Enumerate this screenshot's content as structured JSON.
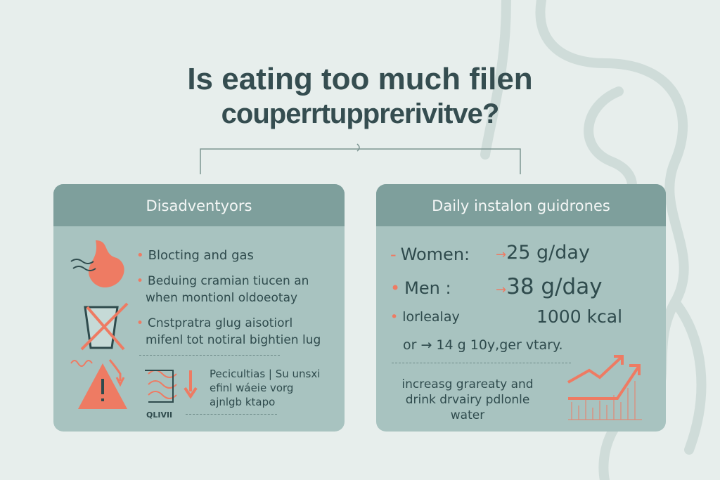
{
  "title": {
    "line1": "Is eating too much filen",
    "line2": "couperrtupprerivitve?"
  },
  "left_card": {
    "header": "Disadventyors",
    "items": [
      "Blocting and gas",
      "Beduing cramian tiucen an",
      "when montionl oldoeotay",
      "Cnstpratra glug aisotiorl",
      "mifenl tot notiral bightien lug"
    ],
    "bottom_text": [
      "Pecicultias | Su unsxi",
      "efinl wáeie vorg",
      "ajnlgb ktapo"
    ],
    "icon_label": "QLIVII"
  },
  "right_card": {
    "header": "Daily instalon guidrones",
    "rows": [
      {
        "label": "Women:",
        "value": "25 g/day"
      },
      {
        "label": "Men :",
        "value": "38 g/day"
      },
      {
        "label": "lorlealay",
        "value": "1000 kcal"
      }
    ],
    "sub": "or → 14 g 10y,ger vtary.",
    "note": [
      "increasg grareaty and",
      "drink drvairy pdlonle",
      "water"
    ]
  },
  "colors": {
    "accent": "#ee7b63",
    "card": "#a8c3c0",
    "card_header": "#7e9f9c",
    "text": "#2f4b4d",
    "background": "#e7eeec"
  }
}
